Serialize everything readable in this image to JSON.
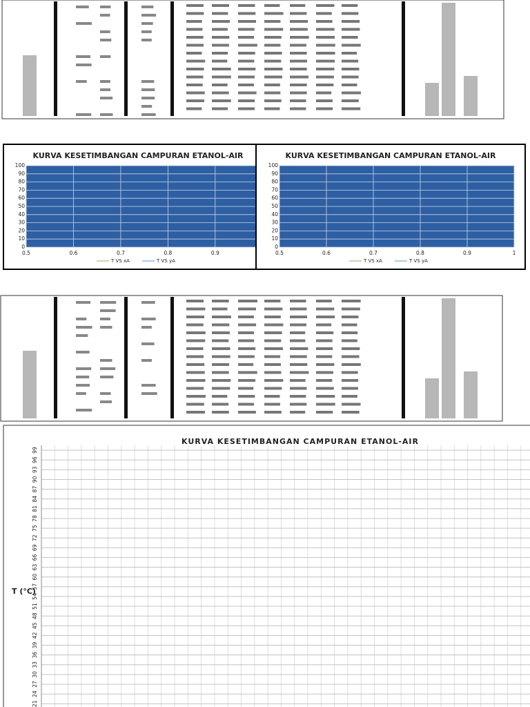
{
  "chart_data": [
    {
      "type": "area",
      "title": "KURVA KESETIMBANGAN CAMPURAN ETANOL-AIR",
      "fill_color": "#2e5fa3",
      "xlim": [
        0.5,
        0.985
      ],
      "xticks": [
        0.5,
        0.6,
        0.7,
        0.8,
        0.9
      ],
      "ylim": [
        0,
        100
      ],
      "yticks": [
        0,
        10,
        20,
        30,
        40,
        50,
        60,
        70,
        80,
        90,
        100
      ],
      "grid": true,
      "series": [
        {
          "name": "T VS xA",
          "color": "#a9c47f"
        },
        {
          "name": "T VS yA",
          "color": "#7ea6d8"
        }
      ]
    },
    {
      "type": "area",
      "title": "KURVA KESETIMBANGAN CAMPURAN ETANOL-AIR",
      "fill_color": "#2e5fa3",
      "xlim": [
        0.5,
        1
      ],
      "xticks": [
        0.5,
        0.6,
        0.7,
        0.8,
        0.9,
        1
      ],
      "ylim": [
        0,
        100
      ],
      "yticks": [
        0,
        10,
        20,
        30,
        40,
        50,
        60,
        70,
        80,
        90,
        100
      ],
      "grid": true,
      "series": [
        {
          "name": "T VS xA",
          "color": "#a9c47f"
        },
        {
          "name": "T VS yA",
          "color": "#7ea6d8"
        }
      ]
    },
    {
      "type": "line",
      "title": "KURVA KESETIMBANGAN CAMPURAN ETANOL-AIR",
      "y_label": "T (°C)",
      "ylim": [
        20,
        100.5
      ],
      "yticks": [
        99,
        96,
        93,
        90,
        87,
        84,
        81,
        78,
        75,
        72,
        69,
        66,
        63,
        60,
        57,
        54,
        51,
        48,
        45,
        42,
        39,
        36,
        33,
        30,
        27,
        24,
        21
      ],
      "grid": true
    }
  ]
}
